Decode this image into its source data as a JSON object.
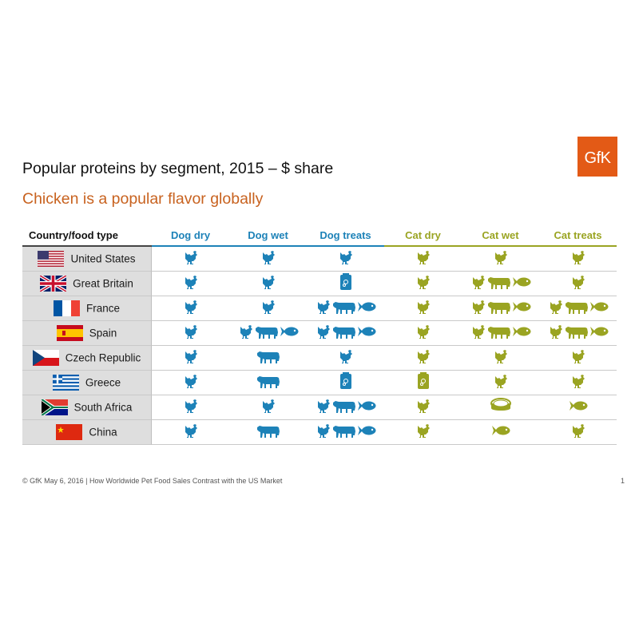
{
  "logo": "GfK",
  "title": "Popular proteins by segment, 2015 – $ share",
  "subtitle": "Chicken is a popular flavor globally",
  "colors": {
    "dog": "#1d82b8",
    "cat": "#9aa422",
    "accent": "#c8621f",
    "logo_bg": "#e35a16"
  },
  "table": {
    "header_first": "Country/food type",
    "columns": [
      {
        "label": "Dog dry",
        "group": "dog"
      },
      {
        "label": "Dog wet",
        "group": "dog"
      },
      {
        "label": "Dog treats",
        "group": "dog"
      },
      {
        "label": "Cat dry",
        "group": "cat"
      },
      {
        "label": "Cat wet",
        "group": "cat"
      },
      {
        "label": "Cat treats",
        "group": "cat"
      }
    ],
    "rows": [
      {
        "country": "United States",
        "flag": "us-flag",
        "cells": [
          [
            "chicken"
          ],
          [
            "chicken"
          ],
          [
            "chicken"
          ],
          [
            "chicken"
          ],
          [
            "chicken"
          ],
          [
            "chicken"
          ]
        ]
      },
      {
        "country": "Great Britain",
        "flag": "gb-flag",
        "cells": [
          [
            "chicken"
          ],
          [
            "chicken"
          ],
          [
            "bag"
          ],
          [
            "chicken"
          ],
          [
            "chicken",
            "cow",
            "fish"
          ],
          [
            "chicken"
          ]
        ]
      },
      {
        "country": "France",
        "flag": "fr-flag",
        "cells": [
          [
            "chicken"
          ],
          [
            "chicken"
          ],
          [
            "chicken",
            "cow",
            "fish"
          ],
          [
            "chicken"
          ],
          [
            "chicken",
            "cow",
            "fish"
          ],
          [
            "chicken",
            "cow",
            "fish"
          ]
        ]
      },
      {
        "country": "Spain",
        "flag": "es-flag",
        "cells": [
          [
            "chicken"
          ],
          [
            "chicken",
            "cow",
            "fish"
          ],
          [
            "chicken",
            "cow",
            "fish"
          ],
          [
            "chicken"
          ],
          [
            "chicken",
            "cow",
            "fish"
          ],
          [
            "chicken",
            "cow",
            "fish"
          ]
        ]
      },
      {
        "country": "Czech Republic",
        "flag": "cz-flag",
        "cells": [
          [
            "chicken"
          ],
          [
            "cow"
          ],
          [
            "chicken"
          ],
          [
            "chicken"
          ],
          [
            "chicken"
          ],
          [
            "chicken"
          ]
        ]
      },
      {
        "country": "Greece",
        "flag": "gr-flag",
        "cells": [
          [
            "chicken"
          ],
          [
            "cow"
          ],
          [
            "bag"
          ],
          [
            "bag"
          ],
          [
            "chicken"
          ],
          [
            "chicken"
          ]
        ]
      },
      {
        "country": "South Africa",
        "flag": "za-flag",
        "cells": [
          [
            "chicken"
          ],
          [
            "chicken"
          ],
          [
            "chicken",
            "cow",
            "fish"
          ],
          [
            "chicken"
          ],
          [
            "can"
          ],
          [
            "fish"
          ]
        ]
      },
      {
        "country": "China",
        "flag": "cn-flag",
        "cells": [
          [
            "chicken"
          ],
          [
            "cow"
          ],
          [
            "chicken",
            "cow",
            "fish"
          ],
          [
            "chicken"
          ],
          [
            "fish"
          ],
          [
            "chicken"
          ]
        ]
      }
    ]
  },
  "footer": "© GfK May 6, 2016 | How Worldwide Pet Food Sales Contrast with the US Market",
  "page_number": "1"
}
